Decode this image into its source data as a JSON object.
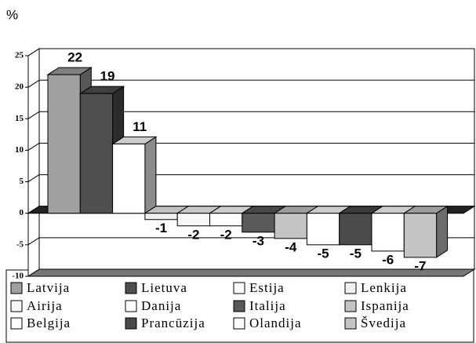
{
  "chart_data": {
    "type": "bar3d",
    "y_label": "%",
    "categories": [
      "Latvija",
      "Lietuva",
      "Estija",
      "Lenkija",
      "Airija",
      "Danija",
      "Italija",
      "Ispanija",
      "Belgija",
      "Prancūzija",
      "Olandija",
      "Švedija"
    ],
    "values": [
      22,
      19,
      11,
      -1,
      -2,
      -2,
      -3,
      -4,
      -5,
      -5,
      -6,
      -7
    ],
    "colors": [
      "#a0a0a0",
      "#4f4f4f",
      "#ffffff",
      "#f0f0f0",
      "#f7f7f7",
      "#ffffff",
      "#5a5a5a",
      "#c4c4c4",
      "#ffffff",
      "#4a4a4a",
      "#ffffff",
      "#c4c4c4"
    ],
    "ylim": [
      -10,
      25
    ],
    "yticks": [
      -10,
      -5,
      0,
      5,
      10,
      15,
      20,
      25
    ],
    "grid": true
  }
}
